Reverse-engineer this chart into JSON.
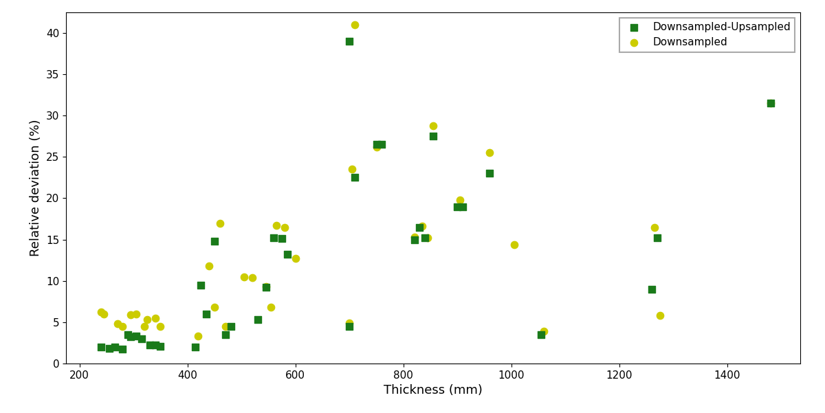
{
  "downsampled_upsampled": [
    [
      240,
      2.0
    ],
    [
      255,
      1.8
    ],
    [
      265,
      2.0
    ],
    [
      280,
      1.7
    ],
    [
      290,
      3.5
    ],
    [
      295,
      3.2
    ],
    [
      305,
      3.3
    ],
    [
      315,
      3.0
    ],
    [
      330,
      2.2
    ],
    [
      340,
      2.2
    ],
    [
      350,
      2.1
    ],
    [
      415,
      2.0
    ],
    [
      425,
      9.5
    ],
    [
      435,
      6.0
    ],
    [
      450,
      14.8
    ],
    [
      470,
      3.5
    ],
    [
      480,
      4.5
    ],
    [
      530,
      5.3
    ],
    [
      545,
      9.2
    ],
    [
      560,
      15.2
    ],
    [
      575,
      15.1
    ],
    [
      585,
      13.2
    ],
    [
      700,
      4.5
    ],
    [
      710,
      22.5
    ],
    [
      700,
      39.0
    ],
    [
      750,
      26.5
    ],
    [
      760,
      26.5
    ],
    [
      820,
      15.0
    ],
    [
      830,
      16.5
    ],
    [
      840,
      15.2
    ],
    [
      855,
      27.5
    ],
    [
      900,
      19.0
    ],
    [
      910,
      19.0
    ],
    [
      960,
      23.0
    ],
    [
      1055,
      3.5
    ],
    [
      1260,
      9.0
    ],
    [
      1270,
      15.2
    ],
    [
      1480,
      31.5
    ]
  ],
  "downsampled": [
    [
      240,
      6.2
    ],
    [
      245,
      6.0
    ],
    [
      270,
      4.8
    ],
    [
      280,
      4.5
    ],
    [
      295,
      5.9
    ],
    [
      305,
      6.0
    ],
    [
      320,
      4.5
    ],
    [
      325,
      5.3
    ],
    [
      340,
      5.5
    ],
    [
      350,
      4.5
    ],
    [
      420,
      3.3
    ],
    [
      440,
      11.8
    ],
    [
      450,
      6.8
    ],
    [
      460,
      17.0
    ],
    [
      470,
      4.5
    ],
    [
      505,
      10.5
    ],
    [
      520,
      10.4
    ],
    [
      545,
      9.3
    ],
    [
      555,
      6.8
    ],
    [
      565,
      16.7
    ],
    [
      580,
      16.5
    ],
    [
      600,
      12.7
    ],
    [
      700,
      4.9
    ],
    [
      705,
      23.5
    ],
    [
      710,
      41.0
    ],
    [
      750,
      26.2
    ],
    [
      820,
      15.3
    ],
    [
      835,
      16.6
    ],
    [
      845,
      15.2
    ],
    [
      855,
      28.8
    ],
    [
      905,
      19.8
    ],
    [
      960,
      25.5
    ],
    [
      1005,
      14.4
    ],
    [
      1060,
      3.9
    ],
    [
      1265,
      16.5
    ],
    [
      1275,
      5.8
    ],
    [
      1480,
      31.5
    ]
  ],
  "xlabel": "Thickness (mm)",
  "ylabel": "Relative deviation (%)",
  "xlim": [
    175,
    1535
  ],
  "ylim": [
    0,
    42.5
  ],
  "yticks": [
    0,
    5,
    10,
    15,
    20,
    25,
    30,
    35,
    40
  ],
  "xticks": [
    200,
    400,
    600,
    800,
    1000,
    1200,
    1400
  ],
  "green_color": "#1a7a1a",
  "yellow_color": "#cccc00",
  "legend_labels": [
    "Downsampled-Upsampled",
    "Downsampled"
  ],
  "marker_size_square": 55,
  "marker_size_circle": 55
}
